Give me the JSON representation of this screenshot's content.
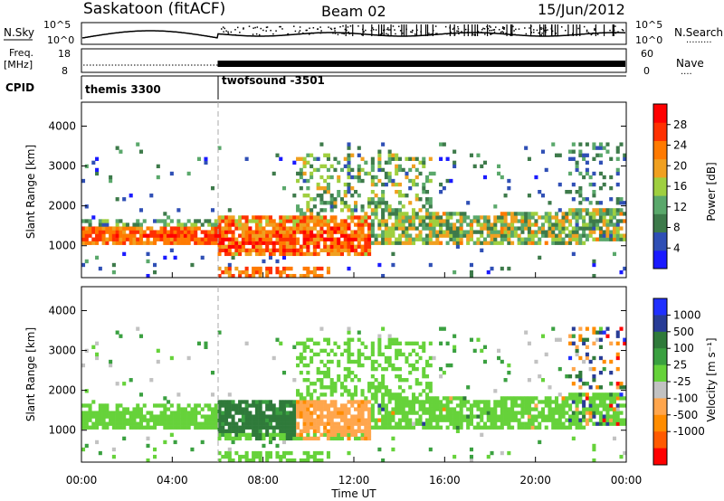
{
  "header": {
    "station": "Saskatoon (fitACF)",
    "beam": "Beam 02",
    "date": "15/Jun/2012"
  },
  "sky_panel": {
    "left_label": "N.Sky",
    "left_ticks": [
      "10^5",
      "10^0"
    ],
    "right_ticks": [
      "10^5",
      "10^0"
    ],
    "right_label": "N.Search",
    "right_label_dots": "·········"
  },
  "freq_panel": {
    "left_label_line1": "Freq.",
    "left_label_line2": "[MHz]",
    "left_ticks": [
      "18",
      "8"
    ],
    "right_ticks": [
      "60",
      "0"
    ],
    "right_label": "Nave",
    "right_label_dots": "····"
  },
  "cpid_panel": {
    "label": "CPID",
    "modes": [
      {
        "name": "themis 3300",
        "start_hour": 0
      },
      {
        "name": "twofsound -3501",
        "start_hour": 6
      }
    ]
  },
  "colors": {
    "power": [
      "#1a1aff",
      "#2f4fb5",
      "#3d7a4a",
      "#5aa86b",
      "#9fcf3f",
      "#f0a020",
      "#ff7a00",
      "#ff3000",
      "#ff0000"
    ],
    "velocity": [
      "#2030ff",
      "#283c96",
      "#2f7a3a",
      "#3aa040",
      "#66d23a",
      "#c2c2c2",
      "#ffa64d",
      "#ff8c00",
      "#ff5a00",
      "#ff0000"
    ]
  },
  "chart_data": [
    {
      "type": "heatmap",
      "name": "power",
      "ylabel": "Slant Range [km]",
      "yticks": [
        1000,
        2000,
        3000,
        4000
      ],
      "ylim": [
        200,
        4600
      ],
      "xlim_hours": [
        0,
        24
      ],
      "xticks": [
        "00:00",
        "04:00",
        "08:00",
        "12:00",
        "16:00",
        "20:00",
        "00:00"
      ],
      "colorbar": {
        "label": "Power [dB]",
        "range": [
          0,
          32
        ],
        "ticks": [
          4,
          8,
          12,
          16,
          20,
          24,
          28
        ]
      },
      "features": [
        {
          "desc": "strong band",
          "start_hour": 0,
          "end_hour": 6,
          "range_km": [
            1050,
            1450
          ],
          "power_db": 25
        },
        {
          "desc": "strong band",
          "start_hour": 6,
          "end_hour": 12.5,
          "range_km": [
            800,
            1700
          ],
          "power_db": 28
        },
        {
          "desc": "weak band",
          "start_hour": 13,
          "end_hour": 24,
          "range_km": [
            1100,
            1900
          ],
          "power_db": 14
        },
        {
          "desc": "scatter",
          "start_hour": 10,
          "end_hour": 15,
          "range_km": [
            1800,
            3200
          ],
          "power_db": 12
        }
      ]
    },
    {
      "type": "heatmap",
      "name": "velocity",
      "ylabel": "Slant Range [km]",
      "xlabel": "Time UT",
      "yticks": [
        1000,
        2000,
        3000,
        4000
      ],
      "ylim": [
        200,
        4600
      ],
      "xlim_hours": [
        0,
        24
      ],
      "xticks": [
        "00:00",
        "04:00",
        "08:00",
        "12:00",
        "16:00",
        "20:00",
        "00:00"
      ],
      "colorbar": {
        "label": "Velocity [m s⁻¹]",
        "ticks": [
          "1000",
          "500",
          "100",
          "25",
          "-25",
          "-100",
          "-500",
          "-1000"
        ]
      },
      "features": [
        {
          "desc": "ground scatter",
          "start_hour": 0,
          "end_hour": 6,
          "range_km": [
            1050,
            1450
          ],
          "velocity": 0
        },
        {
          "desc": "positive",
          "start_hour": 6,
          "end_hour": 9.5,
          "range_km": [
            900,
            1650
          ],
          "velocity": 200
        },
        {
          "desc": "negative",
          "start_hour": 9.5,
          "end_hour": 13.5,
          "range_km": [
            900,
            1650
          ],
          "velocity": -400
        },
        {
          "desc": "ground scatter",
          "start_hour": 13,
          "end_hour": 22,
          "range_km": [
            1100,
            2000
          ],
          "velocity": 0
        }
      ]
    }
  ],
  "axis": {
    "xlabel": "Time UT",
    "xticks": [
      "00:00",
      "04:00",
      "08:00",
      "12:00",
      "16:00",
      "20:00",
      "00:00"
    ],
    "yticks": [
      "1000",
      "2000",
      "3000",
      "4000"
    ],
    "ylabel": "Slant Range [km]"
  }
}
